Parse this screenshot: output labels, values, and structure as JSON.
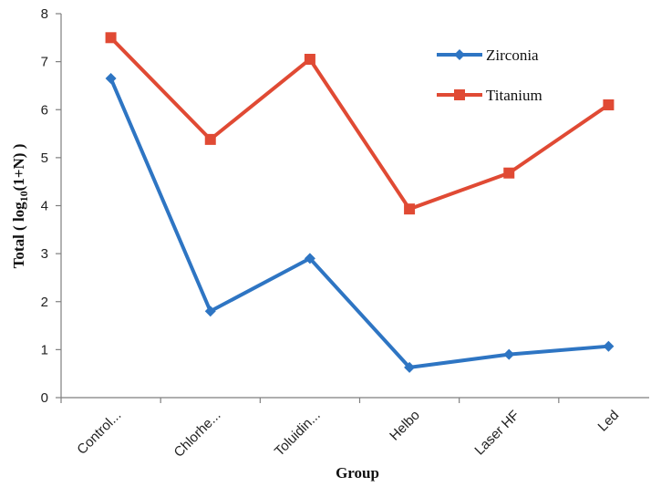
{
  "chart_data": {
    "type": "line",
    "title": "",
    "xlabel": "Group",
    "ylabel_main": "Total ( log",
    "ylabel_sub": "10",
    "ylabel_rest": "(1+N) )",
    "categories": [
      "Control...",
      "Chlorhe...",
      "Toluidin...",
      "Helbo",
      "Laser HF",
      "Led"
    ],
    "ylim": [
      0,
      8
    ],
    "yticks": [
      "0",
      "1",
      "2",
      "3",
      "4",
      "5",
      "6",
      "7",
      "8"
    ],
    "grid": false,
    "legend_position": "top-right",
    "series": [
      {
        "name": "Zirconia",
        "color": "#2e75c3",
        "marker": "diamond",
        "values": [
          6.65,
          1.8,
          2.9,
          0.63,
          0.9,
          1.07
        ]
      },
      {
        "name": "Titanium",
        "color": "#e04a34",
        "marker": "square",
        "values": [
          7.5,
          5.38,
          7.05,
          3.93,
          4.68,
          6.1
        ]
      }
    ]
  }
}
